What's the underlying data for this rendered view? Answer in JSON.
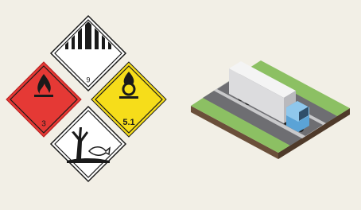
{
  "placards": [
    {
      "label": "9"
    },
    {
      "label": "3"
    },
    {
      "label": "5.1"
    }
  ]
}
